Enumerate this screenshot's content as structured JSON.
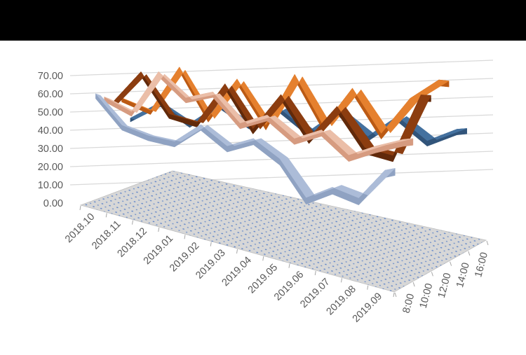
{
  "page": {
    "background": "#FFFFFF",
    "top_band_color": "#000000"
  },
  "chart_data": {
    "type": "line",
    "subtype": "3d-ribbon",
    "title": "",
    "categories": [
      "2018.10",
      "2018.11",
      "2018.12",
      "2019.01",
      "2019.02",
      "2019.03",
      "2019.04",
      "2019.05",
      "2019.06",
      "2019.07",
      "2019.08",
      "2019.09"
    ],
    "series": [
      {
        "name": "8:00",
        "color_top": "#ACBCD8",
        "color_side": "#8FA2C2",
        "values": [
          53,
          40,
          37,
          36,
          44,
          37,
          41,
          35,
          23,
          28,
          26,
          36
        ]
      },
      {
        "name": "10:00",
        "color_top": "#EBBEA8",
        "color_side": "#D69B80",
        "values": [
          53,
          47,
          66,
          55,
          58,
          46,
          50,
          42,
          46,
          38,
          42,
          45
        ]
      },
      {
        "name": "12:00",
        "color_top": "#8C3D10",
        "color_side": "#61290A",
        "values": [
          52,
          68,
          48,
          45,
          63,
          44,
          59,
          42,
          55,
          40,
          38,
          60
        ]
      },
      {
        "name": "14:00",
        "color_top": "#E5802E",
        "color_side": "#BB5A14",
        "values": [
          56,
          50,
          73,
          48,
          67,
          46,
          69,
          47,
          63,
          45,
          59,
          66
        ]
      },
      {
        "name": "16:00",
        "color_top": "#44719F",
        "color_side": "#31547A",
        "values": [
          46,
          56,
          45,
          56,
          46,
          55,
          44,
          54,
          43,
          52,
          42,
          47
        ]
      }
    ],
    "series_depth_order_note": "8:00 is the front ribbon, 16:00 is the back ribbon",
    "value_axis": {
      "min": 0,
      "max": 70,
      "step": 10,
      "labels": [
        "0.00",
        "10.00",
        "20.00",
        "30.00",
        "40.00",
        "50.00",
        "60.00",
        "70.00"
      ]
    },
    "depth_axis": {
      "labels": [
        "8:00",
        "10:00",
        "12:00",
        "14:00",
        "16:00"
      ]
    },
    "style": {
      "gridline_color": "#D9D9D9",
      "floor_color": "#D7D7D7",
      "floor_edge_color": "#BFBFBF",
      "floor_dot_color": "#4472C4",
      "axis_text_color": "#595959",
      "tick_color": "#A6A6A6",
      "plot_background": "#FFFFFF"
    }
  }
}
